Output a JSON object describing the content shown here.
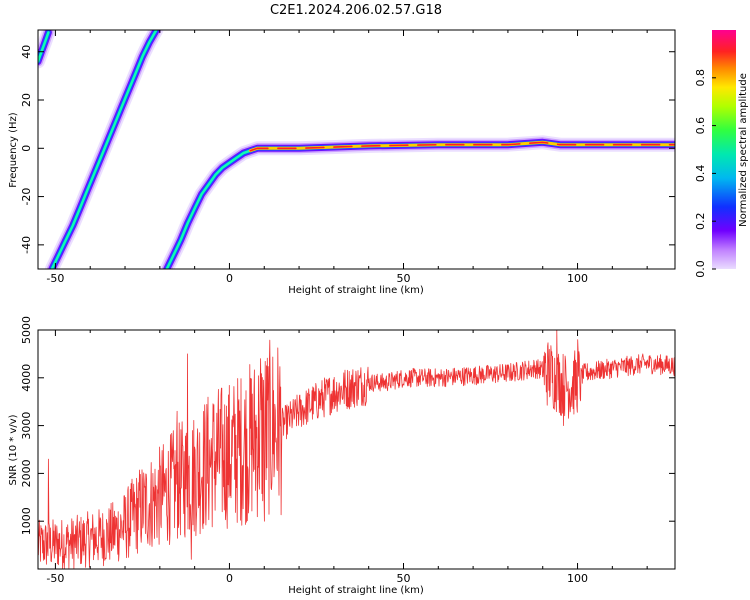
{
  "title": "C2E1.2024.206.02.57.G18",
  "chart_data": [
    {
      "type": "heatmap",
      "xlabel": "Height of straight line (km)",
      "ylabel": "Frequency (Hz)",
      "xlim": [
        -55,
        128
      ],
      "ylim": [
        -50,
        49
      ],
      "xticks": [
        -50,
        0,
        50,
        100
      ],
      "yticks": [
        -40,
        -20,
        0,
        20,
        40
      ],
      "colorbar": {
        "label": "Normalized spectral amplitude",
        "range": [
          0,
          1
        ],
        "ticks": [
          "0.0",
          "0.2",
          "0.4",
          "0.6",
          "0.8"
        ],
        "colors": [
          "#e8d8ff",
          "#6a00ff",
          "#0044ff",
          "#00ccee",
          "#22ff66",
          "#99ff00",
          "#ffee00",
          "#ff8800",
          "#ff2020",
          "#ff0088"
        ]
      },
      "traces": [
        {
          "name": "",
          "points": [
            [
              -18,
              -50
            ],
            [
              -16,
              -44
            ],
            [
              -14,
              -38
            ],
            [
              -12,
              -31
            ],
            [
              -10,
              -25
            ],
            [
              -8,
              -19
            ],
            [
              -6,
              -15
            ],
            [
              -4,
              -11
            ],
            [
              -2,
              -8
            ],
            [
              0,
              -6
            ],
            [
              2,
              -4
            ],
            [
              4,
              -2
            ],
            [
              6,
              -1
            ],
            [
              8,
              0
            ],
            [
              12,
              0
            ],
            [
              20,
              0
            ],
            [
              40,
              1
            ],
            [
              60,
              1.5
            ],
            [
              80,
              1.5
            ],
            [
              90,
              2.5
            ],
            [
              95,
              1.5
            ],
            [
              105,
              1.5
            ],
            [
              115,
              1.5
            ],
            [
              128,
              1.5
            ]
          ]
        },
        {
          "name": "",
          "points": [
            [
              -51,
              -50
            ],
            [
              -49,
              -44
            ],
            [
              -47,
              -38
            ],
            [
              -45,
              -32
            ],
            [
              -43,
              -25
            ],
            [
              -41,
              -18
            ],
            [
              -39,
              -11
            ],
            [
              -37,
              -4
            ],
            [
              -35,
              3
            ],
            [
              -33,
              10
            ],
            [
              -31,
              17
            ],
            [
              -29,
              24
            ],
            [
              -27,
              31
            ],
            [
              -25,
              38
            ],
            [
              -23,
              44
            ],
            [
              -21,
              49
            ]
          ]
        },
        {
          "name": "",
          "points": [
            [
              -55,
              36
            ],
            [
              -54,
              40
            ],
            [
              -53,
              44
            ],
            [
              -52,
              48
            ]
          ]
        }
      ]
    },
    {
      "type": "line",
      "xlabel": "Height of straight line (km)",
      "ylabel": "SNR (10 * v/v)",
      "xlim": [
        -55,
        128
      ],
      "ylim": [
        0,
        5000
      ],
      "xticks": [
        -50,
        0,
        50,
        100
      ],
      "yticks": [
        1000,
        2000,
        3000,
        4000,
        5000
      ],
      "color": "#ee3333",
      "envelope": [
        [
          -55,
          500
        ],
        [
          -45,
          550
        ],
        [
          -35,
          700
        ],
        [
          -30,
          900
        ],
        [
          -25,
          1300
        ],
        [
          -20,
          1500
        ],
        [
          -15,
          1800
        ],
        [
          -10,
          2000
        ],
        [
          -5,
          2300
        ],
        [
          0,
          2400
        ],
        [
          5,
          2600
        ],
        [
          10,
          2900
        ],
        [
          15,
          3000
        ],
        [
          20,
          3300
        ],
        [
          25,
          3500
        ],
        [
          30,
          3700
        ],
        [
          35,
          3800
        ],
        [
          40,
          3900
        ],
        [
          45,
          3900
        ],
        [
          50,
          4000
        ],
        [
          60,
          4000
        ],
        [
          70,
          4050
        ],
        [
          80,
          4100
        ],
        [
          88,
          4200
        ],
        [
          92,
          4100
        ],
        [
          95,
          3900
        ],
        [
          98,
          3800
        ],
        [
          102,
          4100
        ],
        [
          110,
          4200
        ],
        [
          120,
          4300
        ],
        [
          128,
          4250
        ]
      ],
      "spikes": [
        [
          -12,
          4500
        ],
        [
          -11,
          200
        ],
        [
          -15,
          3300
        ],
        [
          9,
          4400
        ],
        [
          10,
          1000
        ],
        [
          -52,
          2300
        ],
        [
          94,
          5000
        ],
        [
          96,
          3000
        ],
        [
          100,
          4800
        ]
      ]
    }
  ]
}
